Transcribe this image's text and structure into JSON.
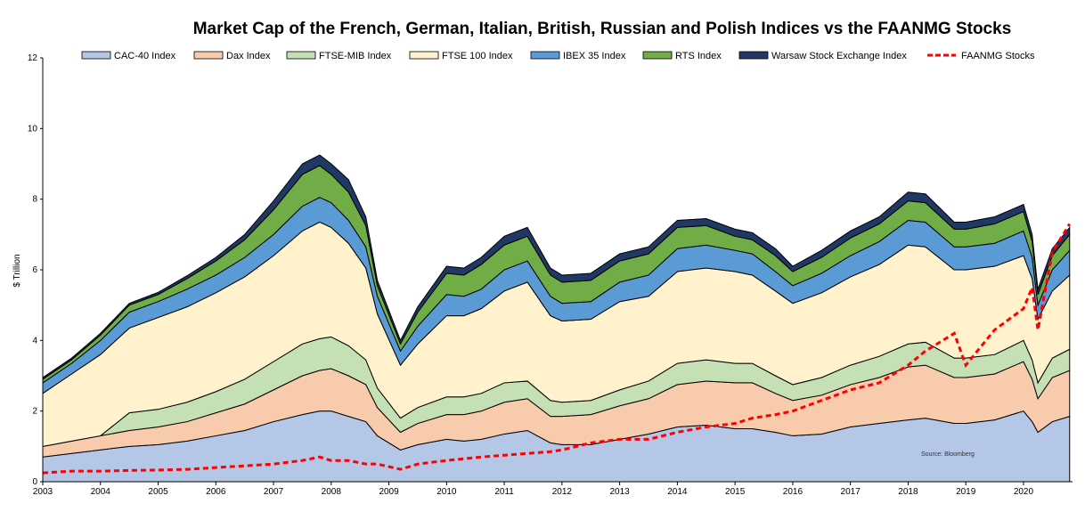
{
  "chart_data": {
    "type": "area",
    "title": "Market Cap of the French, German, Italian, British, Russian and Polish Indices vs the FAANMG Stocks",
    "ylabel": "$ Trillion",
    "xlabel": "",
    "source": "Source: Bloomberg",
    "ylim": [
      0,
      12
    ],
    "y_ticks": [
      "0",
      "2",
      "4",
      "6",
      "8",
      "10",
      "12"
    ],
    "x_ticks": [
      "2003",
      "2004",
      "2005",
      "2006",
      "2007",
      "2008",
      "2009",
      "2010",
      "2011",
      "2012",
      "2013",
      "2014",
      "2015",
      "2016",
      "2017",
      "2018",
      "2019",
      "2020"
    ],
    "legend_position": "top",
    "grid": false,
    "x": [
      2003.0,
      2003.5,
      2004.0,
      2004.5,
      2005.0,
      2005.5,
      2006.0,
      2006.5,
      2007.0,
      2007.5,
      2007.8,
      2008.0,
      2008.3,
      2008.6,
      2008.8,
      2009.2,
      2009.5,
      2010.0,
      2010.3,
      2010.6,
      2011.0,
      2011.4,
      2011.8,
      2012.0,
      2012.5,
      2013.0,
      2013.5,
      2014.0,
      2014.5,
      2015.0,
      2015.3,
      2015.7,
      2016.0,
      2016.5,
      2017.0,
      2017.5,
      2018.0,
      2018.3,
      2018.8,
      2019.0,
      2019.5,
      2020.0,
      2020.15,
      2020.25,
      2020.5,
      2020.8
    ],
    "series": [
      {
        "name": "CAC-40 Index",
        "color": "#b4c7e7",
        "values": [
          0.7,
          0.8,
          0.9,
          1.0,
          1.05,
          1.15,
          1.3,
          1.45,
          1.7,
          1.9,
          2.0,
          2.0,
          1.85,
          1.7,
          1.3,
          0.9,
          1.05,
          1.2,
          1.15,
          1.2,
          1.35,
          1.45,
          1.1,
          1.05,
          1.05,
          1.2,
          1.35,
          1.55,
          1.6,
          1.5,
          1.5,
          1.4,
          1.3,
          1.35,
          1.55,
          1.65,
          1.75,
          1.8,
          1.65,
          1.65,
          1.75,
          2.0,
          1.7,
          1.4,
          1.7,
          1.85
        ]
      },
      {
        "name": "Dax Index",
        "color": "#f8cbad",
        "values": [
          0.3,
          0.35,
          0.4,
          0.45,
          0.5,
          0.55,
          0.65,
          0.75,
          0.9,
          1.1,
          1.15,
          1.2,
          1.15,
          1.05,
          0.8,
          0.5,
          0.6,
          0.7,
          0.75,
          0.8,
          0.9,
          0.9,
          0.75,
          0.8,
          0.85,
          0.95,
          1.0,
          1.2,
          1.25,
          1.3,
          1.3,
          1.1,
          1.0,
          1.1,
          1.2,
          1.3,
          1.5,
          1.5,
          1.3,
          1.3,
          1.3,
          1.4,
          1.2,
          0.95,
          1.25,
          1.3
        ]
      },
      {
        "name": "FTSE-MIB Index",
        "color": "#c5e0b4",
        "values": [
          0.0,
          0.0,
          0.0,
          0.5,
          0.5,
          0.55,
          0.6,
          0.7,
          0.8,
          0.9,
          0.9,
          0.9,
          0.85,
          0.7,
          0.55,
          0.4,
          0.45,
          0.5,
          0.5,
          0.5,
          0.55,
          0.5,
          0.45,
          0.4,
          0.4,
          0.45,
          0.5,
          0.6,
          0.6,
          0.55,
          0.55,
          0.5,
          0.45,
          0.5,
          0.55,
          0.6,
          0.65,
          0.65,
          0.55,
          0.55,
          0.55,
          0.6,
          0.55,
          0.45,
          0.55,
          0.6
        ]
      },
      {
        "name": "FTSE 100 Index",
        "color": "#fff2cc",
        "values": [
          1.5,
          1.9,
          2.3,
          2.4,
          2.6,
          2.7,
          2.8,
          2.9,
          3.0,
          3.2,
          3.3,
          3.1,
          2.9,
          2.6,
          2.1,
          1.5,
          1.8,
          2.3,
          2.3,
          2.4,
          2.6,
          2.8,
          2.4,
          2.3,
          2.3,
          2.5,
          2.4,
          2.6,
          2.6,
          2.6,
          2.5,
          2.4,
          2.3,
          2.4,
          2.5,
          2.6,
          2.8,
          2.7,
          2.5,
          2.5,
          2.5,
          2.4,
          2.3,
          1.8,
          1.9,
          2.1
        ]
      },
      {
        "name": "IBEX 35 Index",
        "color": "#5b9bd5",
        "values": [
          0.3,
          0.3,
          0.4,
          0.45,
          0.45,
          0.5,
          0.5,
          0.55,
          0.6,
          0.7,
          0.7,
          0.7,
          0.65,
          0.6,
          0.5,
          0.4,
          0.5,
          0.6,
          0.55,
          0.55,
          0.6,
          0.6,
          0.55,
          0.5,
          0.5,
          0.55,
          0.6,
          0.65,
          0.65,
          0.6,
          0.6,
          0.55,
          0.5,
          0.55,
          0.6,
          0.65,
          0.7,
          0.7,
          0.65,
          0.65,
          0.65,
          0.7,
          0.6,
          0.4,
          0.6,
          0.7
        ]
      },
      {
        "name": "RTS Index",
        "color": "#70ad47",
        "values": [
          0.1,
          0.1,
          0.15,
          0.2,
          0.2,
          0.3,
          0.4,
          0.5,
          0.7,
          0.9,
          0.9,
          0.8,
          0.8,
          0.6,
          0.3,
          0.2,
          0.4,
          0.6,
          0.6,
          0.7,
          0.7,
          0.7,
          0.6,
          0.6,
          0.6,
          0.6,
          0.6,
          0.6,
          0.55,
          0.4,
          0.4,
          0.45,
          0.4,
          0.45,
          0.5,
          0.5,
          0.55,
          0.55,
          0.5,
          0.5,
          0.55,
          0.55,
          0.45,
          0.3,
          0.4,
          0.45
        ]
      },
      {
        "name": "Warsaw Stock Exchange Index",
        "color": "#203864",
        "values": [
          0.05,
          0.05,
          0.05,
          0.05,
          0.06,
          0.08,
          0.1,
          0.15,
          0.25,
          0.3,
          0.3,
          0.3,
          0.35,
          0.25,
          0.15,
          0.1,
          0.15,
          0.2,
          0.2,
          0.2,
          0.25,
          0.25,
          0.2,
          0.2,
          0.2,
          0.2,
          0.2,
          0.2,
          0.2,
          0.2,
          0.2,
          0.2,
          0.15,
          0.2,
          0.2,
          0.2,
          0.25,
          0.25,
          0.2,
          0.2,
          0.2,
          0.2,
          0.2,
          0.15,
          0.2,
          0.2
        ]
      }
    ],
    "overlay": {
      "name": "FAANMG Stocks",
      "color": "#ff0000",
      "style": "dashed",
      "values": [
        0.25,
        0.3,
        0.3,
        0.32,
        0.33,
        0.35,
        0.4,
        0.45,
        0.5,
        0.6,
        0.7,
        0.6,
        0.6,
        0.5,
        0.5,
        0.35,
        0.5,
        0.6,
        0.65,
        0.7,
        0.75,
        0.8,
        0.85,
        0.9,
        1.1,
        1.2,
        1.2,
        1.4,
        1.55,
        1.65,
        1.8,
        1.9,
        2.0,
        2.3,
        2.6,
        2.8,
        3.3,
        3.7,
        4.2,
        3.3,
        4.3,
        4.9,
        5.5,
        4.3,
        6.5,
        7.3
      ]
    }
  }
}
